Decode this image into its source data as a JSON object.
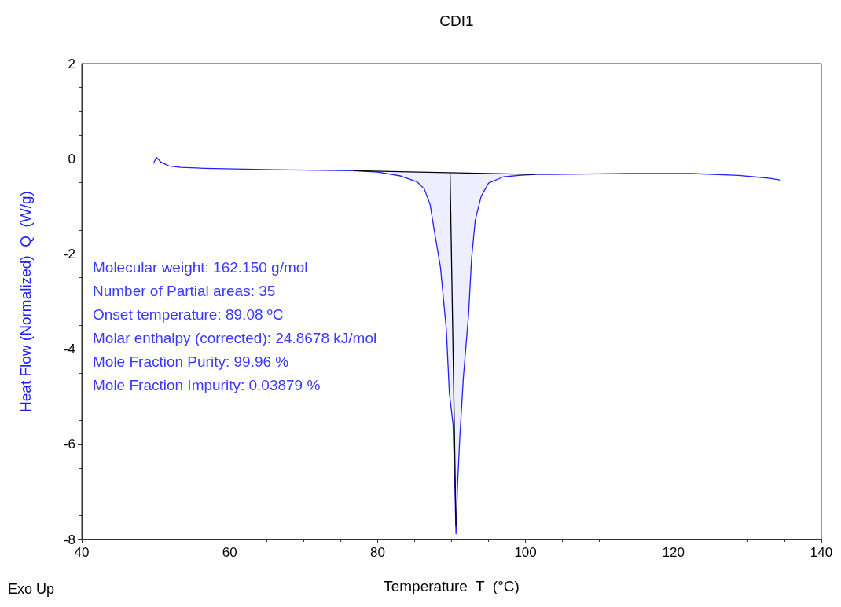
{
  "chart_data": {
    "type": "line",
    "title": "CDI1",
    "xlabel": "Temperature  T  (°C)",
    "ylabel": "Heat Flow (Normalized)  Q  (W/g)",
    "annotations": [
      "Molecular weight: 162.150 g/mol",
      "Number of Partial areas: 35",
      "Onset temperature: 89.08 ºC",
      "Molar enthalpy (corrected): 24.8678 kJ/mol",
      "Mole Fraction Purity: 99.96 %",
      "Mole Fraction Impurity: 0.03879 %",
      "Exo Up"
    ],
    "xlim": [
      40,
      140
    ],
    "xticks": [
      40,
      60,
      80,
      100,
      120,
      140
    ],
    "ylim": [
      -8,
      2
    ],
    "yticks": [
      -8,
      -6,
      -4,
      -2,
      0,
      2
    ],
    "grid": false,
    "marker": "none",
    "line_style": "solid",
    "series": [
      {
        "color": "#2020ff",
        "x": [
          49.7,
          50.1,
          50.7,
          51.8,
          53.4,
          56.6,
          66.1,
          76.8,
          80,
          83.1,
          85.3,
          86.3,
          87.1,
          87.6,
          88.5,
          89.3,
          89.7,
          90.2,
          90.4,
          90.6,
          90.8,
          91.1,
          91.6,
          92.3,
          92.7,
          93.2,
          94,
          95,
          97,
          99.1,
          101.3,
          103.3,
          114,
          122.5,
          128.8,
          131,
          133.1,
          134.5
        ],
        "values": [
          -0.1,
          0.03,
          -0.07,
          -0.15,
          -0.18,
          -0.2,
          -0.23,
          -0.25,
          -0.28,
          -0.36,
          -0.48,
          -0.63,
          -0.96,
          -1.45,
          -2.28,
          -3.6,
          -4.92,
          -5.58,
          -6.57,
          -7.88,
          -6.9,
          -5.9,
          -4.59,
          -3.27,
          -2.11,
          -1.29,
          -0.79,
          -0.51,
          -0.38,
          -0.35,
          -0.33,
          -0.33,
          -0.31,
          -0.31,
          -0.35,
          -0.38,
          -0.41,
          -0.45
        ],
        "lower": [
          null,
          null,
          null,
          null,
          null,
          null,
          null,
          -0.25,
          -0.28,
          -0.36,
          -0.48,
          -0.63,
          -0.96,
          -1.45,
          -2.28,
          -3.6,
          -4.92,
          -5.58,
          -6.57,
          -7.88,
          -6.9,
          -5.9,
          -4.59,
          -3.27,
          -2.11,
          -1.29,
          -0.79,
          -0.51,
          -0.38,
          -0.35,
          -0.33,
          null,
          null,
          null,
          null,
          null,
          null,
          null
        ],
        "upper": [
          null,
          null,
          null,
          null,
          null,
          null,
          null,
          -0.25,
          -0.26,
          -0.27,
          -0.28,
          -0.28,
          -0.28,
          -0.29,
          -0.29,
          -0.29,
          -0.29,
          -0.29,
          -0.29,
          -0.3,
          -0.3,
          -0.3,
          -0.3,
          -0.3,
          -0.3,
          -0.3,
          -0.31,
          -0.31,
          -0.32,
          -0.32,
          -0.33,
          null,
          null,
          null,
          null,
          null,
          null,
          null
        ]
      },
      {
        "color": "#000000",
        "x": [
          76.8,
          101.3
        ],
        "values": [
          -0.25,
          -0.33
        ]
      },
      {
        "color": "#000000",
        "x": [
          89.8,
          90.6
        ],
        "values": [
          -0.3,
          -7.72
        ]
      }
    ]
  }
}
